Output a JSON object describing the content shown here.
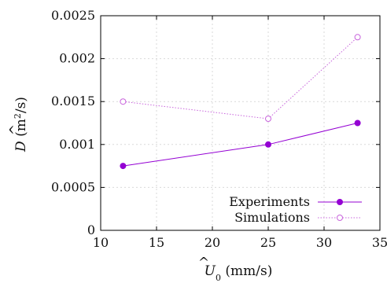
{
  "colors": {
    "experiments": "#9400d3",
    "simulations": "#c864dc",
    "grid": "#d9d9d9",
    "axis": "#000000"
  },
  "chart_data": {
    "type": "line",
    "xlabel_parts": [
      "U",
      "0",
      " (mm/s)"
    ],
    "ylabel_parts": [
      "D",
      " (m",
      "2",
      "/s)"
    ],
    "xlim": [
      10,
      35
    ],
    "ylim": [
      0,
      0.0025
    ],
    "xticks": [
      "10",
      "15",
      "20",
      "25",
      "30",
      "35"
    ],
    "yticks": [
      "0",
      "0.0005",
      "0.001",
      "0.0015",
      "0.002",
      "0.0025"
    ],
    "grid": true,
    "legend_position": "bottom-right",
    "series": [
      {
        "name": "Experiments",
        "style": "solid",
        "marker": "filled-circle",
        "x": [
          12,
          25,
          33
        ],
        "y": [
          0.00075,
          0.001,
          0.00125
        ]
      },
      {
        "name": "Simulations",
        "style": "dotted",
        "marker": "open-circle",
        "x": [
          12,
          25,
          33
        ],
        "y": [
          0.0015,
          0.0013,
          0.00225
        ]
      }
    ]
  }
}
